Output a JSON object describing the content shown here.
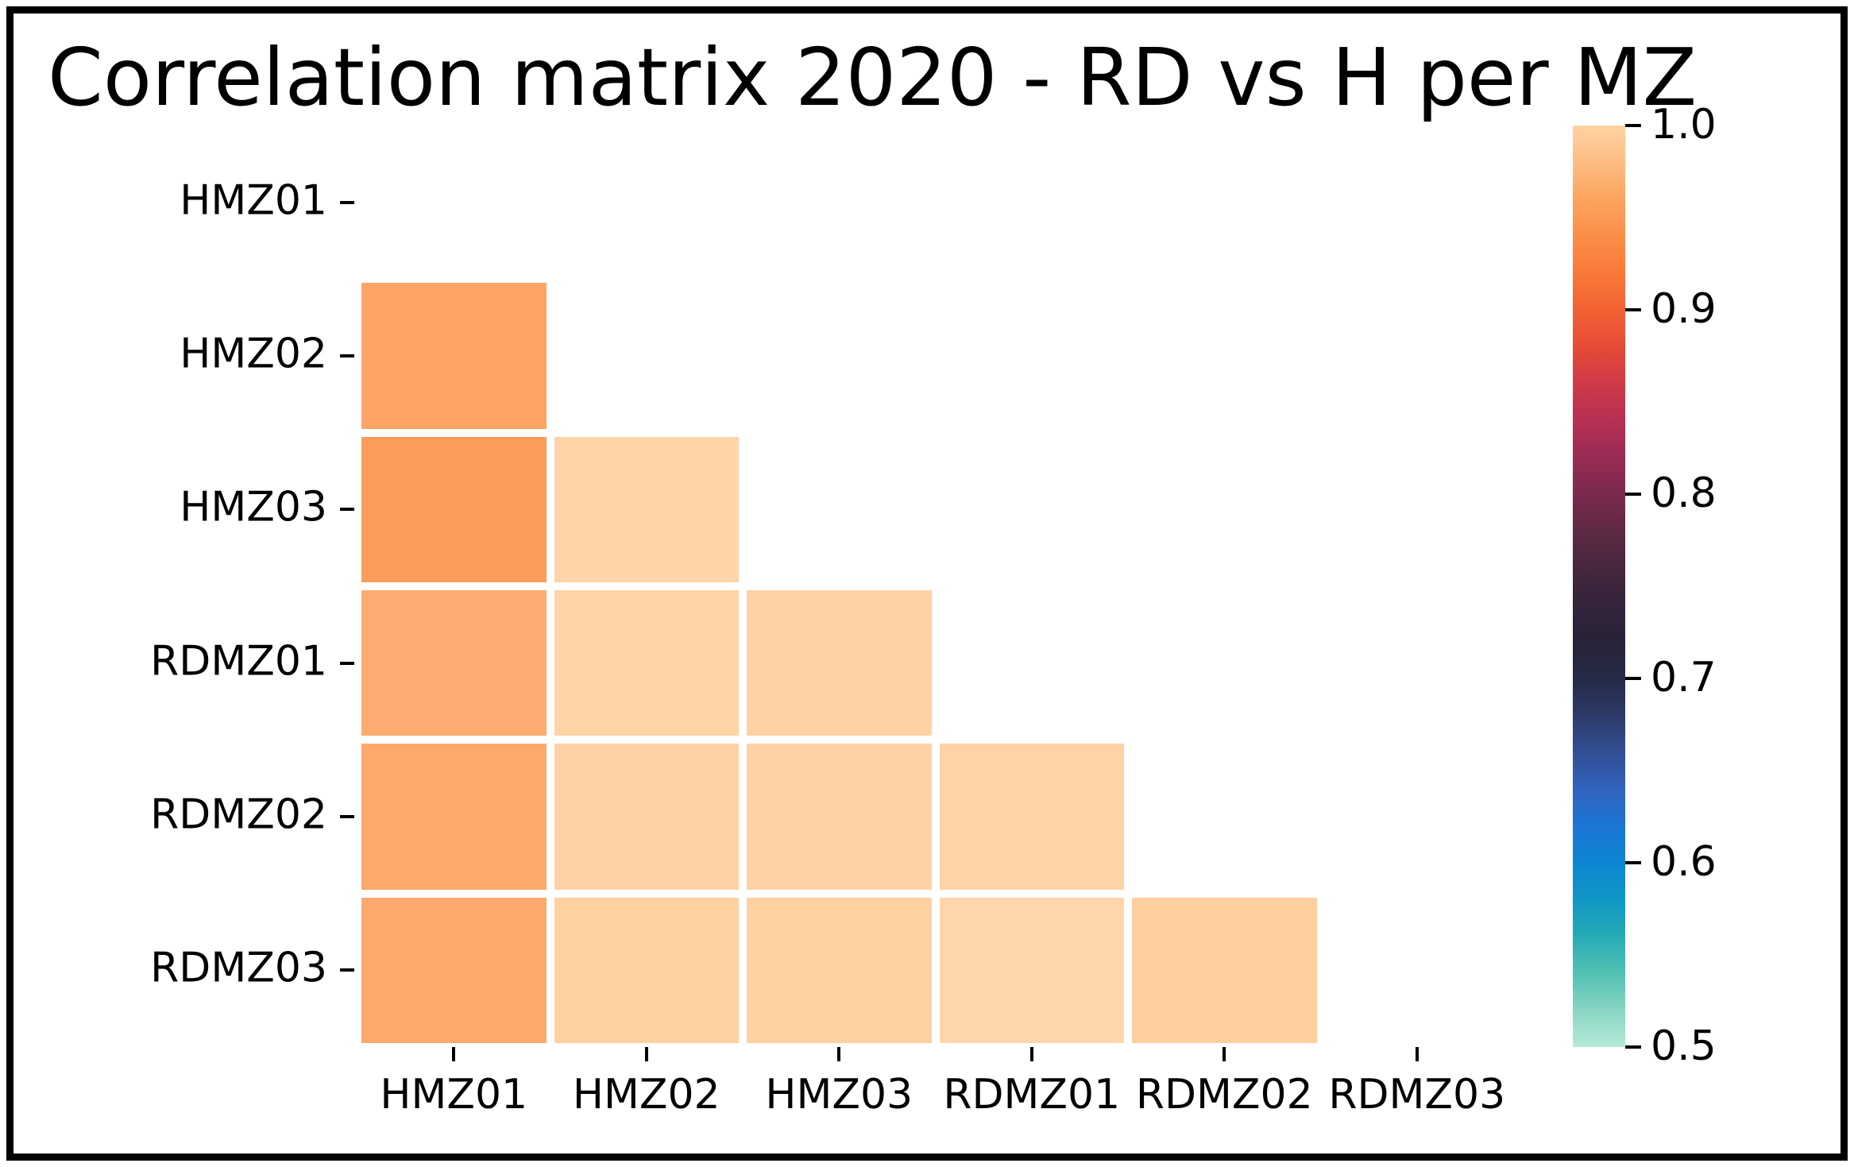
{
  "chart_data": {
    "type": "heatmap",
    "title": "Correlation matrix 2020 - RD vs H per MZ",
    "x_labels": [
      "HMZ01",
      "HMZ02",
      "HMZ03",
      "RDMZ01",
      "RDMZ02",
      "RDMZ03"
    ],
    "y_labels": [
      "HMZ01",
      "HMZ02",
      "HMZ03",
      "RDMZ01",
      "RDMZ02",
      "RDMZ03"
    ],
    "mask": "upper triangle and diagonal hidden (only lower-triangle cells drawn)",
    "grid": "off",
    "background_color": "#ffffff",
    "cells": [
      {
        "row": "HMZ02",
        "col": "HMZ01",
        "value": 0.96,
        "color": "#fda466"
      },
      {
        "row": "HMZ03",
        "col": "HMZ01",
        "value": 0.95,
        "color": "#fc9c5b"
      },
      {
        "row": "HMZ03",
        "col": "HMZ02",
        "value": 0.99,
        "color": "#ffd4a9"
      },
      {
        "row": "RDMZ01",
        "col": "HMZ01",
        "value": 0.96,
        "color": "#fdab70"
      },
      {
        "row": "RDMZ01",
        "col": "HMZ02",
        "value": 0.99,
        "color": "#fed3a6"
      },
      {
        "row": "RDMZ01",
        "col": "HMZ03",
        "value": 0.99,
        "color": "#fed2a4"
      },
      {
        "row": "RDMZ02",
        "col": "HMZ01",
        "value": 0.96,
        "color": "#fda86c"
      },
      {
        "row": "RDMZ02",
        "col": "HMZ02",
        "value": 0.99,
        "color": "#fed2a4"
      },
      {
        "row": "RDMZ02",
        "col": "HMZ03",
        "value": 0.99,
        "color": "#fed2a4"
      },
      {
        "row": "RDMZ02",
        "col": "RDMZ01",
        "value": 0.99,
        "color": "#fed3a6"
      },
      {
        "row": "RDMZ03",
        "col": "HMZ01",
        "value": 0.96,
        "color": "#fda96d"
      },
      {
        "row": "RDMZ03",
        "col": "HMZ02",
        "value": 0.98,
        "color": "#fed1a2"
      },
      {
        "row": "RDMZ03",
        "col": "HMZ03",
        "value": 0.98,
        "color": "#fed1a2"
      },
      {
        "row": "RDMZ03",
        "col": "RDMZ01",
        "value": 0.99,
        "color": "#ffd6ac"
      },
      {
        "row": "RDMZ03",
        "col": "RDMZ02",
        "value": 0.98,
        "color": "#fecf9e"
      }
    ],
    "colorbar": {
      "colormap": "icefire",
      "vmin": 0.5,
      "vmax": 1.0,
      "orientation": "vertical",
      "position": "right",
      "tick_labels": [
        "1.0",
        "0.9",
        "0.8",
        "0.7",
        "0.6",
        "0.5"
      ],
      "gradient_top_to_bottom": [
        "#ffd2a2",
        "#fdbd83",
        "#fca45f",
        "#fb8e47",
        "#f97938",
        "#f26233",
        "#e54b35",
        "#d03a48",
        "#b63054",
        "#982b55",
        "#7b2a4e",
        "#5e2944",
        "#46273e",
        "#33243a",
        "#282338",
        "#252a47",
        "#2c3a68",
        "#334e94",
        "#3163bd",
        "#1b76d4",
        "#0d85d1",
        "#0f97c4",
        "#27abb5",
        "#52c1b2",
        "#87d5c3",
        "#b7ead9"
      ]
    }
  }
}
